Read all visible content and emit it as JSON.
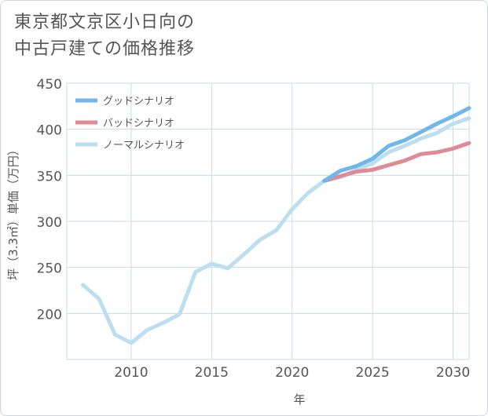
{
  "title_lines": [
    "東京都文京区小日向の",
    "中古戸建ての価格推移"
  ],
  "colors": {
    "good": "#6fb6ea",
    "bad": "#e08a95",
    "normal": "#bcdff0",
    "grid": "#c9dce6",
    "axis": "#555555"
  },
  "chart_data": {
    "type": "line",
    "title": "東京都文京区小日向の中古戸建ての価格推移",
    "xlabel": "年",
    "ylabel": "坪（3.3㎡）単価（万円）",
    "xlim": [
      2006,
      2031
    ],
    "ylim": [
      150,
      450
    ],
    "xticks": [
      2010,
      2015,
      2020,
      2025,
      2030
    ],
    "yticks": [
      200,
      250,
      300,
      350,
      400,
      450
    ],
    "legend_position": "top-left",
    "series": [
      {
        "name": "グッドシナリオ",
        "key": "good",
        "x": [
          2022,
          2023,
          2024,
          2025,
          2026,
          2027,
          2028,
          2029,
          2030,
          2031
        ],
        "y": [
          344,
          355,
          360,
          368,
          382,
          388,
          397,
          406,
          414,
          423
        ]
      },
      {
        "name": "バッドシナリオ",
        "key": "bad",
        "x": [
          2022,
          2023,
          2024,
          2025,
          2026,
          2027,
          2028,
          2029,
          2030,
          2031
        ],
        "y": [
          344,
          349,
          354,
          356,
          361,
          366,
          373,
          375,
          379,
          385
        ]
      },
      {
        "name": "ノーマルシナリオ",
        "key": "normal",
        "x": [
          2007,
          2008,
          2009,
          2010,
          2011,
          2012,
          2013,
          2014,
          2015,
          2016,
          2017,
          2018,
          2019,
          2020,
          2021,
          2022,
          2023,
          2024,
          2025,
          2026,
          2027,
          2028,
          2029,
          2030,
          2031
        ],
        "y": [
          231,
          216,
          177,
          168,
          182,
          190,
          199,
          245,
          254,
          249,
          264,
          280,
          290,
          313,
          331,
          344,
          348,
          356,
          363,
          375,
          382,
          390,
          396,
          406,
          412
        ]
      }
    ]
  }
}
